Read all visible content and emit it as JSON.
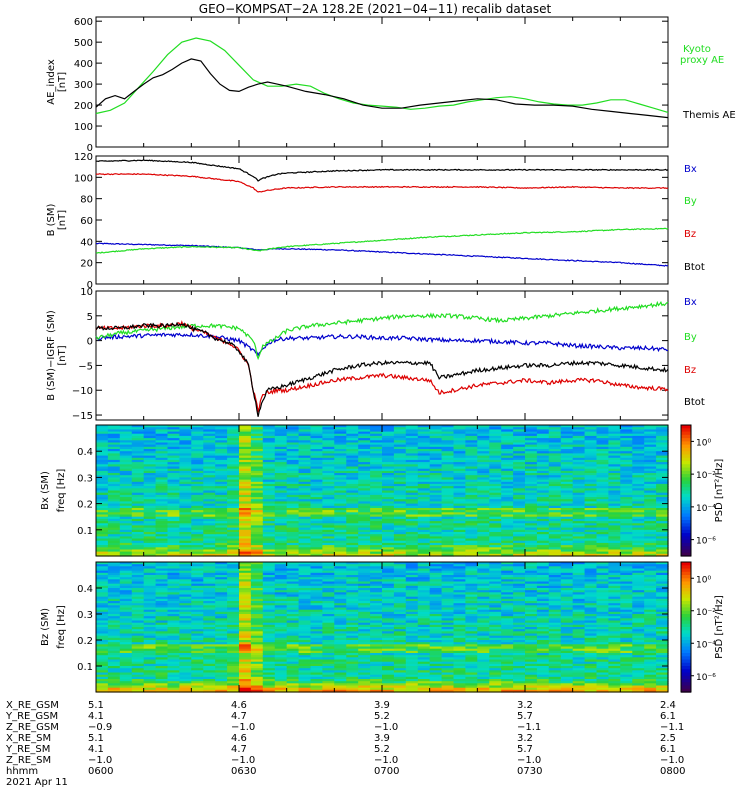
{
  "title": "GEO−KOMPSAT−2A 128.2E (2021−04−11) recalib dataset",
  "colors": {
    "black": "#000000",
    "red": "#dd0000",
    "green": "#22dd22",
    "blue": "#0000cc",
    "kyoto": "#22dd22"
  },
  "chart_data": [
    {
      "type": "line",
      "panel": "ae",
      "ylabel": "AE_index",
      "yunit": "[nT]",
      "ylim": [
        0,
        620
      ],
      "yticks": [
        "0",
        "100",
        "200",
        "300",
        "400",
        "500",
        "600"
      ],
      "yticks_values": [
        0,
        100,
        200,
        300,
        400,
        500,
        600
      ],
      "x_range_hhmm": [
        "0600",
        "0800"
      ],
      "series": [
        {
          "name": "Kyoto proxy AE",
          "label_lines": [
            "Kyoto",
            "proxy AE"
          ],
          "color": "green",
          "x": [
            0,
            3,
            6,
            9,
            12,
            15,
            18,
            21,
            24,
            27,
            30,
            33,
            36,
            39,
            42,
            45,
            48,
            51,
            54,
            57,
            60,
            63,
            66,
            69,
            72,
            75,
            78,
            81,
            84,
            87,
            90,
            93,
            96,
            99,
            102,
            105,
            108,
            111,
            114,
            117,
            120
          ],
          "y": [
            160,
            175,
            210,
            285,
            360,
            440,
            500,
            520,
            505,
            460,
            390,
            320,
            290,
            290,
            300,
            290,
            255,
            230,
            210,
            200,
            195,
            190,
            180,
            185,
            195,
            200,
            215,
            225,
            235,
            240,
            230,
            215,
            205,
            200,
            200,
            210,
            225,
            225,
            205,
            185,
            165
          ]
        },
        {
          "name": "Themis AE",
          "label_lines": [
            "Themis AE"
          ],
          "color": "black",
          "x": [
            0,
            2,
            4,
            6,
            8,
            10,
            12,
            14,
            16,
            18,
            20,
            22,
            24,
            26,
            28,
            30,
            32,
            34,
            36,
            38,
            40,
            44,
            48,
            52,
            56,
            60,
            64,
            68,
            72,
            76,
            80,
            84,
            88,
            92,
            96,
            100,
            104,
            108,
            112,
            116,
            120
          ],
          "y": [
            190,
            230,
            245,
            230,
            265,
            300,
            330,
            345,
            370,
            400,
            420,
            410,
            350,
            300,
            270,
            265,
            285,
            300,
            310,
            300,
            290,
            265,
            250,
            230,
            200,
            185,
            185,
            200,
            210,
            220,
            230,
            225,
            205,
            200,
            200,
            195,
            180,
            170,
            160,
            150,
            140
          ]
        }
      ]
    },
    {
      "type": "line",
      "panel": "b",
      "ylabel": "B (SM)",
      "yunit": "[nT]",
      "ylim": [
        0,
        120
      ],
      "yticks": [
        "0",
        "20",
        "40",
        "60",
        "80",
        "100",
        "120"
      ],
      "yticks_values": [
        0,
        20,
        40,
        60,
        80,
        100,
        120
      ],
      "series": [
        {
          "name": "Bx",
          "color": "blue",
          "x": [
            0,
            10,
            20,
            30,
            34,
            38,
            40,
            50,
            60,
            70,
            80,
            90,
            100,
            110,
            120
          ],
          "y": [
            38,
            37,
            36,
            34,
            32,
            33,
            33,
            32,
            30,
            28,
            26,
            24,
            22,
            20,
            17
          ]
        },
        {
          "name": "By",
          "color": "green",
          "x": [
            0,
            10,
            20,
            30,
            34,
            38,
            40,
            50,
            60,
            70,
            80,
            90,
            100,
            110,
            120
          ],
          "y": [
            29,
            33,
            35,
            34,
            31,
            34,
            35,
            38,
            41,
            44,
            46,
            48,
            49,
            51,
            52
          ]
        },
        {
          "name": "Bz",
          "color": "red",
          "x": [
            0,
            10,
            20,
            30,
            33,
            34,
            35,
            38,
            40,
            50,
            60,
            70,
            80,
            90,
            100,
            110,
            120
          ],
          "y": [
            103,
            103,
            101,
            96,
            90,
            86,
            87,
            89,
            90,
            91,
            91,
            91,
            91,
            90,
            91,
            90,
            90
          ]
        },
        {
          "name": "Btot",
          "color": "black",
          "x": [
            0,
            10,
            20,
            30,
            33,
            34,
            35,
            38,
            40,
            50,
            60,
            70,
            80,
            90,
            100,
            110,
            120
          ],
          "y": [
            115,
            116,
            114,
            108,
            101,
            97,
            99,
            103,
            104,
            106,
            107,
            107,
            107,
            107,
            107,
            107,
            107
          ]
        }
      ]
    },
    {
      "type": "line",
      "panel": "db",
      "ylabel": "B (SM)−IGRF (SM)",
      "yunit": "[nT]",
      "ylim": [
        -16,
        10
      ],
      "yticks": [
        "−15",
        "−10",
        "−5",
        "0",
        "5",
        "10"
      ],
      "yticks_values": [
        -15,
        -10,
        -5,
        0,
        5,
        10
      ],
      "series": [
        {
          "name": "Bx",
          "color": "blue",
          "x": [
            0,
            5,
            10,
            15,
            20,
            25,
            30,
            33,
            34,
            35,
            37,
            40,
            45,
            50,
            55,
            60,
            65,
            70,
            75,
            80,
            85,
            90,
            95,
            100,
            105,
            110,
            115,
            120
          ],
          "y": [
            0.5,
            0.8,
            1.0,
            1.2,
            1.2,
            0.8,
            0.0,
            -2.0,
            -3.0,
            -1.5,
            0.0,
            0.5,
            0.5,
            0.8,
            0.8,
            0.5,
            0.5,
            0.2,
            0.0,
            0.0,
            -0.2,
            -0.5,
            -0.5,
            -1.0,
            -1.2,
            -1.5,
            -1.5,
            -1.8
          ]
        },
        {
          "name": "By",
          "color": "green",
          "x": [
            0,
            5,
            10,
            15,
            20,
            25,
            30,
            33,
            34,
            35,
            37,
            40,
            45,
            50,
            55,
            60,
            65,
            70,
            75,
            80,
            85,
            90,
            95,
            100,
            105,
            110,
            115,
            120
          ],
          "y": [
            0.5,
            1.5,
            2.0,
            2.5,
            3.0,
            3.0,
            2.5,
            0.0,
            -3.5,
            -1.0,
            0.0,
            2.0,
            3.0,
            3.5,
            4.0,
            4.5,
            5.0,
            5.0,
            5.0,
            4.5,
            4.0,
            4.5,
            5.0,
            5.5,
            6.0,
            6.5,
            7.0,
            7.5
          ]
        },
        {
          "name": "Bz",
          "color": "red",
          "x": [
            0,
            5,
            10,
            15,
            18,
            20,
            23,
            25,
            28,
            30,
            32,
            33,
            34,
            35,
            36,
            38,
            40,
            45,
            50,
            55,
            60,
            65,
            70,
            72,
            75,
            80,
            85,
            90,
            95,
            100,
            105,
            110,
            115,
            120
          ],
          "y": [
            2.5,
            2.5,
            3.0,
            3.0,
            3.5,
            2.5,
            1.5,
            0.5,
            -0.5,
            -2.0,
            -5.0,
            -10.0,
            -14.0,
            -11.0,
            -10.5,
            -10.0,
            -10.0,
            -9.0,
            -8.0,
            -7.5,
            -7.0,
            -7.5,
            -8.0,
            -10.5,
            -10.0,
            -9.0,
            -8.5,
            -8.0,
            -8.5,
            -8.0,
            -8.0,
            -9.0,
            -9.5,
            -9.8
          ]
        },
        {
          "name": "Btot",
          "color": "black",
          "x": [
            0,
            5,
            10,
            15,
            18,
            20,
            23,
            25,
            28,
            30,
            32,
            33,
            34,
            35,
            36,
            38,
            40,
            45,
            50,
            55,
            60,
            65,
            70,
            72,
            75,
            80,
            85,
            90,
            95,
            100,
            105,
            110,
            115,
            120
          ],
          "y": [
            2.5,
            2.5,
            3.0,
            3.0,
            3.5,
            2.5,
            1.5,
            0.5,
            -0.5,
            -2.0,
            -5.0,
            -10.0,
            -15.0,
            -12.0,
            -10.0,
            -9.5,
            -9.0,
            -7.5,
            -6.0,
            -5.0,
            -4.5,
            -4.5,
            -4.5,
            -7.5,
            -7.0,
            -6.0,
            -5.5,
            -5.0,
            -5.0,
            -4.5,
            -4.5,
            -5.0,
            -5.5,
            -6.0
          ]
        }
      ]
    },
    {
      "type": "heatmap",
      "panel": "spec_bx",
      "ylabel": "Bx (SM)",
      "ylabel2": "freq [Hz]",
      "ylim": [
        0,
        0.5
      ],
      "yticks": [
        "0.1",
        "0.2",
        "0.3",
        "0.4"
      ],
      "yticks_values": [
        0.1,
        0.2,
        0.3,
        0.4
      ],
      "colorbar_label": "PSD [nT²/Hz]",
      "colorbar_ticks": [
        "10⁰",
        "10⁻²",
        "10⁻⁴",
        "10⁻⁶"
      ],
      "colorbar_tick_values": [
        0,
        -2,
        -4,
        -6
      ],
      "colorbar_range_log10": [
        -7,
        1
      ]
    },
    {
      "type": "heatmap",
      "panel": "spec_bz",
      "ylabel": "Bz (SM)",
      "ylabel2": "freq [Hz]",
      "ylim": [
        0,
        0.5
      ],
      "yticks": [
        "0.1",
        "0.2",
        "0.3",
        "0.4"
      ],
      "yticks_values": [
        0.1,
        0.2,
        0.3,
        0.4
      ],
      "colorbar_label": "PSD [nT²/Hz]",
      "colorbar_ticks": [
        "10⁰",
        "10⁻²",
        "10⁻⁴",
        "10⁻⁶"
      ],
      "colorbar_tick_values": [
        0,
        -2,
        -4,
        -6
      ],
      "colorbar_range_log10": [
        -7,
        1
      ]
    }
  ],
  "ephemeris": {
    "row_labels": [
      "X_RE_GSM",
      "Y_RE_GSM",
      "Z_RE_GSM",
      "X_RE_SM",
      "Y_RE_SM",
      "Z_RE_SM",
      "hhmm"
    ],
    "date_label": "2021 Apr 11",
    "columns": [
      {
        "minutes": 0,
        "values": [
          "5.1",
          "4.1",
          "−0.9",
          "5.1",
          "4.1",
          "−1.0",
          "0600"
        ]
      },
      {
        "minutes": 30,
        "values": [
          "4.6",
          "4.7",
          "−1.0",
          "4.6",
          "4.7",
          "−1.0",
          "0630"
        ]
      },
      {
        "minutes": 60,
        "values": [
          "3.9",
          "5.2",
          "−1.0",
          "3.9",
          "5.2",
          "−1.0",
          "0700"
        ]
      },
      {
        "minutes": 90,
        "values": [
          "3.2",
          "5.7",
          "−1.1",
          "3.2",
          "5.7",
          "−1.0",
          "0730"
        ]
      },
      {
        "minutes": 120,
        "values": [
          "2.4",
          "6.1",
          "−1.1",
          "2.5",
          "6.1",
          "−1.0",
          "0800"
        ]
      }
    ]
  }
}
